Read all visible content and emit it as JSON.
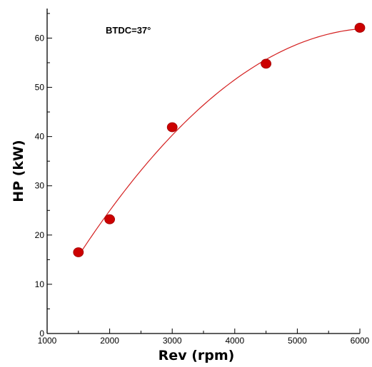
{
  "chart_data": {
    "type": "scatter",
    "xlabel": "Rev (rpm)",
    "ylabel": "HP (kW)",
    "xlim": [
      1000,
      6000
    ],
    "ylim": [
      0,
      66
    ],
    "x_ticks": [
      1000,
      2000,
      3000,
      4000,
      5000,
      6000
    ],
    "y_ticks": [
      0,
      10,
      20,
      30,
      40,
      50,
      60
    ],
    "grid": false,
    "legend": "none",
    "annotation": "BTDC=37°",
    "series": [
      {
        "x": [
          1500,
          2000,
          3000,
          4500,
          6000
        ],
        "y": [
          16.5,
          23.2,
          41.9,
          54.8,
          62.1
        ],
        "marker_color": "#cc0000",
        "trendline": "quadratic",
        "trendline_color": "#d42020"
      }
    ]
  }
}
